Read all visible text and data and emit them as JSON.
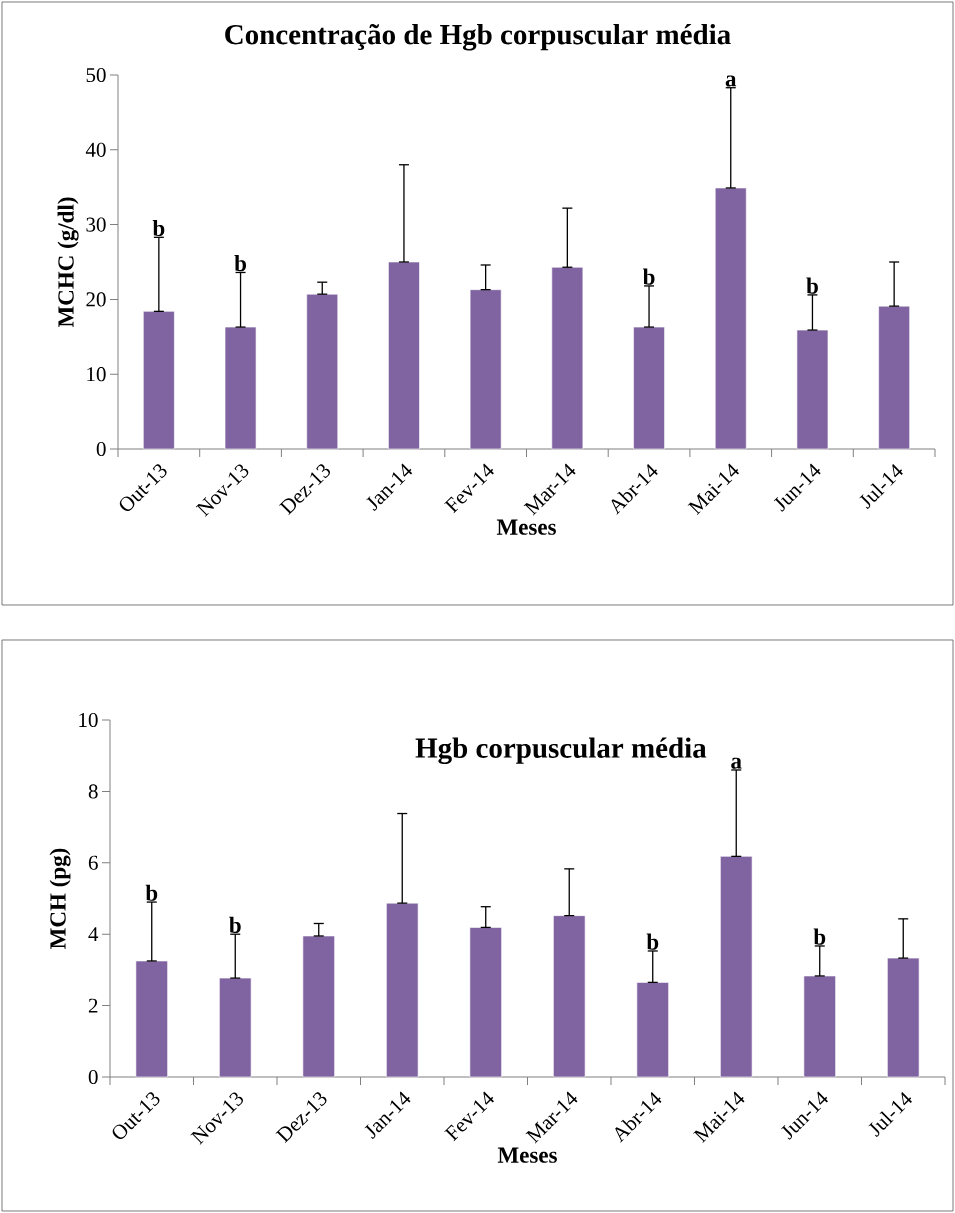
{
  "chart_data": [
    {
      "type": "bar",
      "title": "Concentração de Hgb corpuscular média",
      "xlabel": "Meses",
      "ylabel": "MCHC (g/dl)",
      "categories": [
        "Out-13",
        "Nov-13",
        "Dez-13",
        "Jan-14",
        "Fev-14",
        "Mar-14",
        "Abr-14",
        "Mai-14",
        "Jun-14",
        "Jul-14"
      ],
      "values": [
        18.4,
        16.3,
        20.7,
        25.0,
        21.3,
        24.3,
        16.3,
        34.9,
        15.9,
        19.1
      ],
      "errors": [
        [
          18.4,
          28.3
        ],
        [
          16.3,
          23.6
        ],
        [
          20.7,
          22.3
        ],
        [
          25.0,
          38.0
        ],
        [
          21.3,
          24.6
        ],
        [
          24.3,
          32.2
        ],
        [
          16.3,
          21.8
        ],
        [
          34.9,
          48.3
        ],
        [
          15.9,
          20.6
        ],
        [
          19.1,
          25.0
        ]
      ],
      "color": "#8064a2",
      "ylim": [
        0,
        50
      ],
      "yticks": [
        0,
        10,
        20,
        30,
        40,
        50
      ],
      "annotations": [
        {
          "text": "b",
          "x": "Out-13",
          "y": 28.3
        },
        {
          "text": "b",
          "x": "Nov-13",
          "y": 23.6
        },
        {
          "text": "b",
          "x": "Abr-14",
          "y": 21.8
        },
        {
          "text": "a",
          "x": "Mai-14",
          "y": 48.3
        },
        {
          "text": "b",
          "x": "Jun-14",
          "y": 20.6
        }
      ]
    },
    {
      "type": "bar",
      "title": "Hgb corpuscular média",
      "xlabel": "Meses",
      "ylabel": "MCH (pg)",
      "categories": [
        "Out-13",
        "Nov-13",
        "Dez-13",
        "Jan-14",
        "Fev-14",
        "Mar-14",
        "Abr-14",
        "Mai-14",
        "Jun-14",
        "Jul-14"
      ],
      "values": [
        3.25,
        2.77,
        3.95,
        4.87,
        4.19,
        4.52,
        2.65,
        6.18,
        2.83,
        3.33
      ],
      "errors": [
        [
          3.25,
          4.9
        ],
        [
          2.77,
          4.0
        ],
        [
          3.95,
          4.3
        ],
        [
          4.87,
          7.38
        ],
        [
          4.19,
          4.77
        ],
        [
          4.52,
          5.83
        ],
        [
          2.65,
          3.53
        ],
        [
          6.18,
          8.6
        ],
        [
          2.83,
          3.67
        ],
        [
          3.33,
          4.43
        ]
      ],
      "color": "#8064a2",
      "ylim": [
        0,
        10
      ],
      "yticks": [
        0,
        2,
        4,
        6,
        8,
        10
      ],
      "annotations": [
        {
          "text": "b",
          "x": "Out-13",
          "y": 4.9
        },
        {
          "text": "b",
          "x": "Nov-13",
          "y": 4.0
        },
        {
          "text": "b",
          "x": "Abr-14",
          "y": 3.53
        },
        {
          "text": "a",
          "x": "Mai-14",
          "y": 8.6
        },
        {
          "text": "b",
          "x": "Jun-14",
          "y": 3.67
        }
      ]
    }
  ]
}
